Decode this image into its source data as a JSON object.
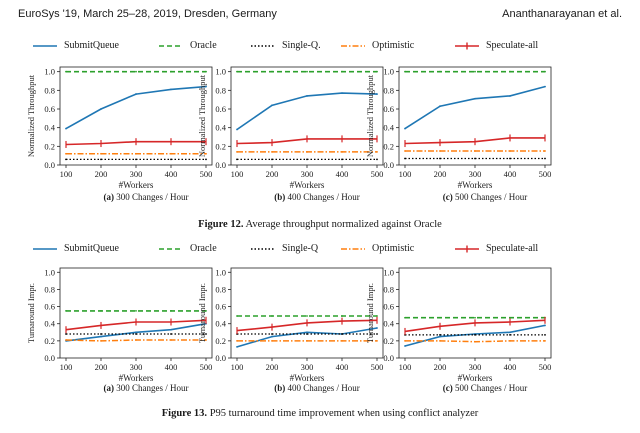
{
  "header": {
    "left": "EuroSys '19, March 25–28, 2019, Dresden, Germany",
    "right": "Ananthanarayanan et al."
  },
  "colors": {
    "submitqueue": "#1f77b4",
    "oracle": "#2ca02c",
    "singleq": "#000000",
    "optimistic": "#ff7f0e",
    "speculate": "#d62728"
  },
  "figure12": {
    "legend": [
      "SubmitQueue",
      "Oracle",
      "Single-Q.",
      "Optimistic",
      "Speculate-all"
    ],
    "caption_label": "Figure 12.",
    "caption_text": " Average throughput normalized against Oracle",
    "subcaptions": [
      {
        "label": "(a)",
        "text": " 300 Changes / Hour"
      },
      {
        "label": "(b)",
        "text": " 400 Changes / Hour"
      },
      {
        "label": "(c)",
        "text": " 500 Changes / Hour"
      }
    ]
  },
  "figure13": {
    "legend": [
      "SubmitQueue",
      "Oracle",
      "Single-Q",
      "Optimistic",
      "Speculate-all"
    ],
    "caption_label": "Figure 13.",
    "caption_text": " P95 turnaround time improvement when using conflict analyzer",
    "subcaptions": [
      {
        "label": "(a)",
        "text": " 300 Changes / Hour"
      },
      {
        "label": "(b)",
        "text": " 400 Changes / Hour"
      },
      {
        "label": "(c)",
        "text": " 500 Changes / Hour"
      }
    ]
  },
  "chart_data": [
    {
      "type": "line",
      "figure": "12a",
      "x": [
        100,
        200,
        300,
        400,
        500
      ],
      "xlabel": "#Workers",
      "ylabel": "Normalized Throughput",
      "ylim": [
        0,
        1.05
      ],
      "yticks": [
        "0.0",
        "0.2",
        "0.4",
        "0.6",
        "0.8",
        "1.0"
      ],
      "xticks": [
        "100",
        "200",
        "300",
        "400",
        "500"
      ],
      "series": [
        {
          "name": "SubmitQueue",
          "values": [
            0.39,
            0.6,
            0.76,
            0.81,
            0.84
          ]
        },
        {
          "name": "Oracle",
          "values": [
            1.0,
            1.0,
            1.0,
            1.0,
            1.0
          ]
        },
        {
          "name": "Single-Q.",
          "values": [
            0.06,
            0.06,
            0.06,
            0.06,
            0.06
          ]
        },
        {
          "name": "Optimistic",
          "values": [
            0.12,
            0.12,
            0.12,
            0.12,
            0.12
          ]
        },
        {
          "name": "Speculate-all",
          "values": [
            0.22,
            0.23,
            0.25,
            0.25,
            0.25
          ]
        }
      ]
    },
    {
      "type": "line",
      "figure": "12b",
      "x": [
        100,
        200,
        300,
        400,
        500
      ],
      "xlabel": "#Workers",
      "ylabel": "Normalized Throughput",
      "ylim": [
        0,
        1.05
      ],
      "yticks": [
        "0.0",
        "0.2",
        "0.4",
        "0.6",
        "0.8",
        "1.0"
      ],
      "xticks": [
        "100",
        "200",
        "300",
        "400",
        "500"
      ],
      "series": [
        {
          "name": "SubmitQueue",
          "values": [
            0.38,
            0.64,
            0.74,
            0.77,
            0.76
          ]
        },
        {
          "name": "Oracle",
          "values": [
            1.0,
            1.0,
            1.0,
            1.0,
            1.0
          ]
        },
        {
          "name": "Single-Q.",
          "values": [
            0.06,
            0.06,
            0.06,
            0.06,
            0.06
          ]
        },
        {
          "name": "Optimistic",
          "values": [
            0.14,
            0.14,
            0.14,
            0.14,
            0.14
          ]
        },
        {
          "name": "Speculate-all",
          "values": [
            0.23,
            0.24,
            0.28,
            0.28,
            0.28
          ]
        }
      ]
    },
    {
      "type": "line",
      "figure": "12c",
      "x": [
        100,
        200,
        300,
        400,
        500
      ],
      "xlabel": "#Workers",
      "ylabel": "Normalized Throughput",
      "ylim": [
        0,
        1.05
      ],
      "yticks": [
        "0.0",
        "0.2",
        "0.4",
        "0.6",
        "0.8",
        "1.0"
      ],
      "xticks": [
        "100",
        "200",
        "300",
        "400",
        "500"
      ],
      "series": [
        {
          "name": "SubmitQueue",
          "values": [
            0.39,
            0.63,
            0.71,
            0.74,
            0.84
          ]
        },
        {
          "name": "Oracle",
          "values": [
            1.0,
            1.0,
            1.0,
            1.0,
            1.0
          ]
        },
        {
          "name": "Single-Q.",
          "values": [
            0.07,
            0.07,
            0.07,
            0.07,
            0.07
          ]
        },
        {
          "name": "Optimistic",
          "values": [
            0.15,
            0.15,
            0.15,
            0.15,
            0.15
          ]
        },
        {
          "name": "Speculate-all",
          "values": [
            0.23,
            0.24,
            0.25,
            0.29,
            0.29
          ]
        }
      ]
    },
    {
      "type": "line",
      "figure": "13a",
      "x": [
        100,
        200,
        300,
        400,
        500
      ],
      "xlabel": "#Workers",
      "ylabel": "Turnaround Impr.",
      "ylim": [
        0,
        1.05
      ],
      "yticks": [
        "0.0",
        "0.2",
        "0.4",
        "0.6",
        "0.8",
        "1.0"
      ],
      "xticks": [
        "100",
        "200",
        "300",
        "400",
        "500"
      ],
      "series": [
        {
          "name": "SubmitQueue",
          "values": [
            0.2,
            0.25,
            0.3,
            0.33,
            0.4
          ]
        },
        {
          "name": "Oracle",
          "values": [
            0.55,
            0.55,
            0.55,
            0.55,
            0.55
          ]
        },
        {
          "name": "Single-Q",
          "values": [
            0.28,
            0.28,
            0.28,
            0.28,
            0.28
          ]
        },
        {
          "name": "Optimistic",
          "values": [
            0.21,
            0.2,
            0.21,
            0.21,
            0.21
          ]
        },
        {
          "name": "Speculate-all",
          "values": [
            0.33,
            0.38,
            0.42,
            0.42,
            0.44
          ]
        }
      ]
    },
    {
      "type": "line",
      "figure": "13b",
      "x": [
        100,
        200,
        300,
        400,
        500
      ],
      "xlabel": "#Workers",
      "ylabel": "Turnaround Impr.",
      "ylim": [
        0,
        1.05
      ],
      "yticks": [
        "0.0",
        "0.2",
        "0.4",
        "0.6",
        "0.8",
        "1.0"
      ],
      "xticks": [
        "100",
        "200",
        "300",
        "400",
        "500"
      ],
      "series": [
        {
          "name": "SubmitQueue",
          "values": [
            0.13,
            0.25,
            0.3,
            0.28,
            0.35
          ]
        },
        {
          "name": "Oracle",
          "values": [
            0.49,
            0.49,
            0.49,
            0.49,
            0.49
          ]
        },
        {
          "name": "Single-Q",
          "values": [
            0.28,
            0.28,
            0.28,
            0.28,
            0.28
          ]
        },
        {
          "name": "Optimistic",
          "values": [
            0.2,
            0.2,
            0.2,
            0.2,
            0.2
          ]
        },
        {
          "name": "Speculate-all",
          "values": [
            0.32,
            0.36,
            0.41,
            0.43,
            0.44
          ]
        }
      ]
    },
    {
      "type": "line",
      "figure": "13c",
      "x": [
        100,
        200,
        300,
        400,
        500
      ],
      "xlabel": "#Workers",
      "ylabel": "Turnaround Impr.",
      "ylim": [
        0,
        1.05
      ],
      "yticks": [
        "0.0",
        "0.2",
        "0.4",
        "0.6",
        "0.8",
        "1.0"
      ],
      "xticks": [
        "100",
        "200",
        "300",
        "400",
        "500"
      ],
      "series": [
        {
          "name": "SubmitQueue",
          "values": [
            0.14,
            0.25,
            0.28,
            0.3,
            0.38
          ]
        },
        {
          "name": "Oracle",
          "values": [
            0.47,
            0.47,
            0.47,
            0.47,
            0.47
          ]
        },
        {
          "name": "Single-Q",
          "values": [
            0.27,
            0.27,
            0.27,
            0.27,
            0.27
          ]
        },
        {
          "name": "Optimistic",
          "values": [
            0.2,
            0.2,
            0.19,
            0.2,
            0.2
          ]
        },
        {
          "name": "Speculate-all",
          "values": [
            0.31,
            0.37,
            0.41,
            0.42,
            0.44
          ]
        }
      ]
    }
  ]
}
